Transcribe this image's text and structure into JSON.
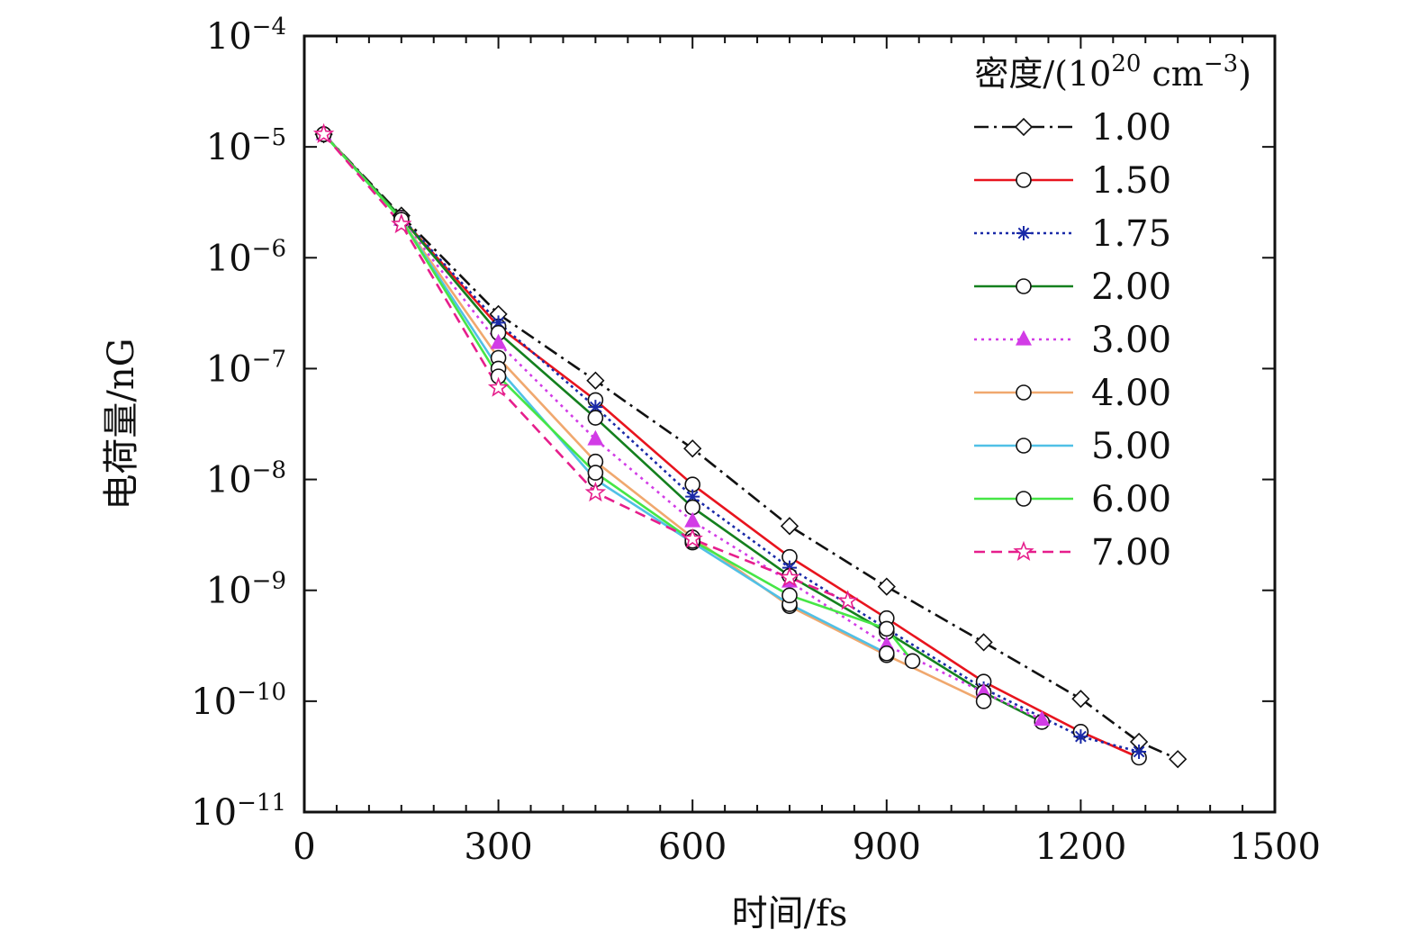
{
  "chart_data": {
    "type": "line",
    "title": "",
    "xlabel": "时间/fs",
    "ylabel": "电荷量/nG",
    "xlim": [
      0,
      1500
    ],
    "ylim": [
      1e-11,
      0.0001
    ],
    "yscale": "log",
    "xticks": [
      "0",
      "300",
      "600",
      "900",
      "1200",
      "1500"
    ],
    "yticks": [
      {
        "base": "10",
        "exp": "−4"
      },
      {
        "base": "10",
        "exp": "−5"
      },
      {
        "base": "10",
        "exp": "−6"
      },
      {
        "base": "10",
        "exp": "−7"
      },
      {
        "base": "10",
        "exp": "−8"
      },
      {
        "base": "10",
        "exp": "−9"
      },
      {
        "base": "10",
        "exp": "−10"
      },
      {
        "base": "10",
        "exp": "−11"
      }
    ],
    "legend": {
      "title": {
        "text": "密度/(10",
        "sup1": "20",
        "mid": " cm",
        "sup2": "−3",
        "end": ")"
      },
      "position": "top-right"
    },
    "series": [
      {
        "name": "1.00",
        "color": "#111111",
        "dash": "16 6 3 6",
        "marker": "diamond",
        "x": [
          30,
          150,
          300,
          450,
          600,
          750,
          900,
          1050,
          1200,
          1290,
          1350
        ],
        "y": [
          1.3e-05,
          2.4e-06,
          3.1e-07,
          7.8e-08,
          1.9e-08,
          3.8e-09,
          1.08e-09,
          3.4e-10,
          1.05e-10,
          4.3e-11,
          3e-11
        ]
      },
      {
        "name": "1.50",
        "color": "#e8141e",
        "dash": "",
        "marker": "circle",
        "x": [
          30,
          150,
          300,
          450,
          600,
          750,
          900,
          1050,
          1200,
          1290
        ],
        "y": [
          1.3e-05,
          2.3e-06,
          2.4e-07,
          5.2e-08,
          9e-09,
          2e-09,
          5.6e-10,
          1.5e-10,
          5.3e-11,
          3.1e-11
        ]
      },
      {
        "name": "1.75",
        "color": "#1a2aa8",
        "dash": "3 4",
        "marker": "asterisk",
        "x": [
          30,
          150,
          300,
          450,
          600,
          750,
          900,
          1050,
          1200,
          1290
        ],
        "y": [
          1.3e-05,
          2.3e-06,
          2.6e-07,
          4.5e-08,
          7e-09,
          1.6e-09,
          4.5e-10,
          1.3e-10,
          4.8e-11,
          3.5e-11
        ]
      },
      {
        "name": "2.00",
        "color": "#14801e",
        "dash": "",
        "marker": "circle",
        "x": [
          30,
          150,
          300,
          450,
          600,
          750,
          900,
          1050,
          1140
        ],
        "y": [
          1.3e-05,
          2.3e-06,
          2.1e-07,
          3.6e-08,
          5.6e-09,
          1.35e-09,
          4.2e-10,
          1.2e-10,
          6.5e-11
        ]
      },
      {
        "name": "3.00",
        "color": "#d23ce6",
        "dash": "3 5",
        "marker": "triangle",
        "x": [
          30,
          150,
          300,
          450,
          600,
          750,
          900,
          1050,
          1140
        ],
        "y": [
          1.3e-05,
          2.2e-06,
          1.7e-07,
          2.3e-08,
          4.2e-09,
          1.2e-09,
          3.2e-10,
          1.2e-10,
          6.8e-11
        ]
      },
      {
        "name": "4.00",
        "color": "#f0a86e",
        "dash": "",
        "marker": "circle",
        "x": [
          30,
          150,
          300,
          450,
          600,
          750,
          900,
          1050
        ],
        "y": [
          1.3e-05,
          2.2e-06,
          1.25e-07,
          1.45e-08,
          3e-09,
          7.2e-10,
          2.6e-10,
          1e-10
        ]
      },
      {
        "name": "5.00",
        "color": "#50c0e6",
        "dash": "",
        "marker": "circle",
        "x": [
          30,
          150,
          300,
          450,
          600,
          750,
          900
        ],
        "y": [
          1.3e-05,
          2.2e-06,
          1e-07,
          1e-08,
          2.7e-09,
          7.5e-10,
          2.7e-10
        ]
      },
      {
        "name": "6.00",
        "color": "#46e646",
        "dash": "",
        "marker": "circle",
        "x": [
          30,
          150,
          300,
          450,
          600,
          750,
          900,
          940
        ],
        "y": [
          1.3e-05,
          2.2e-06,
          8.5e-08,
          1.15e-08,
          2.8e-09,
          9e-10,
          4.5e-10,
          2.3e-10
        ]
      },
      {
        "name": "7.00",
        "color": "#e61e8c",
        "dash": "12 7",
        "marker": "star",
        "x": [
          30,
          150,
          300,
          450,
          600,
          750,
          840
        ],
        "y": [
          1.3e-05,
          2e-06,
          6.7e-08,
          7.6e-09,
          2.9e-09,
          1.3e-09,
          8e-10
        ]
      }
    ]
  }
}
